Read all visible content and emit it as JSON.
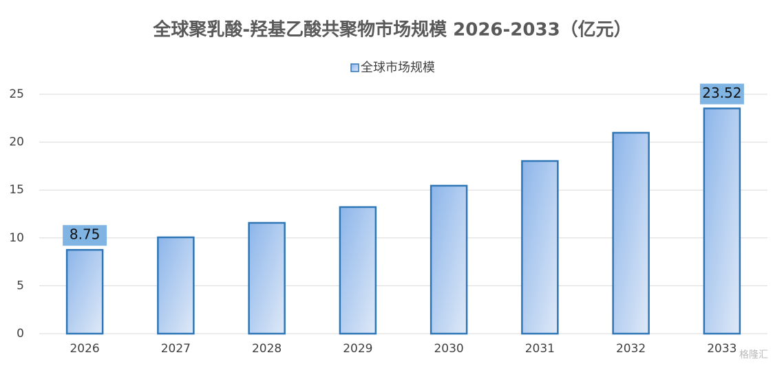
{
  "chart_data": {
    "type": "bar",
    "title": "全球聚乳酸-羟基乙酸共聚物市场规模 2026-2033（亿元）",
    "categories": [
      "2026",
      "2027",
      "2028",
      "2029",
      "2030",
      "2031",
      "2032",
      "2033"
    ],
    "series": [
      {
        "name": "全球市场规模",
        "color": "#2e75b6",
        "values": [
          8.75,
          10.06,
          11.57,
          13.22,
          15.45,
          18.03,
          20.98,
          23.52
        ],
        "value_labels": [
          "8.75",
          null,
          null,
          null,
          null,
          null,
          null,
          "23.52"
        ]
      }
    ],
    "ylim": [
      0,
      25
    ],
    "yticks": [
      0,
      5,
      10,
      15,
      20,
      25
    ],
    "grid": true,
    "legend": "top",
    "watermark": "格隆汇"
  }
}
